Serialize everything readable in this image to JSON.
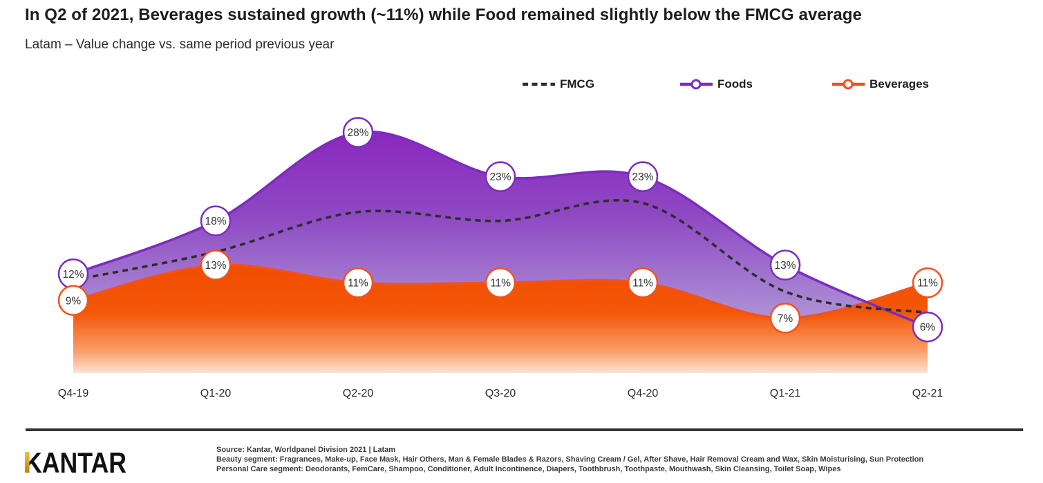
{
  "header": {
    "title": "In Q2 of 2021, Beverages sustained growth (~11%) while Food remained slightly below the FMCG average",
    "subtitle": "Latam – Value change vs. same period previous year"
  },
  "chart_data": {
    "type": "area",
    "title": "Latam – Value change vs. same period previous year",
    "unit": "%",
    "categories": [
      "Q4-19",
      "Q1-20",
      "Q2-20",
      "Q3-20",
      "Q4-20",
      "Q1-21",
      "Q2-21"
    ],
    "series": [
      {
        "name": "FMCG",
        "style": "dashed-line",
        "color": "#2e2e2e",
        "labeled": false,
        "values": [
          11.3,
          14.5,
          19,
          18,
          20,
          10,
          7.6
        ]
      },
      {
        "name": "Foods",
        "style": "area",
        "color": "#7b2cbe",
        "labeled": true,
        "values": [
          12,
          18,
          28,
          23,
          23,
          13,
          6
        ],
        "labels": [
          "12%",
          "18%",
          "28%",
          "23%",
          "23%",
          "13%",
          "6%"
        ],
        "fill_stops": [
          [
            "0%",
            "#8a28be"
          ],
          [
            "35%",
            "#8f49c3"
          ],
          [
            "70%",
            "#a886d3"
          ],
          [
            "100%",
            "#c9b4e4"
          ]
        ]
      },
      {
        "name": "Beverages",
        "style": "area",
        "color": "#f3511a",
        "labeled": true,
        "values": [
          9,
          13,
          11,
          11,
          11,
          7,
          11
        ],
        "labels": [
          "9%",
          "13%",
          "11%",
          "11%",
          "11%",
          "7%",
          "11%"
        ],
        "fill_stops": [
          [
            "0%",
            "#f14c00"
          ],
          [
            "45%",
            "#f35708"
          ],
          [
            "80%",
            "#f99f6b"
          ],
          [
            "100%",
            "#fde4d5"
          ]
        ]
      }
    ],
    "legend_position": "top",
    "grid": false,
    "y_axis_shown": false
  },
  "footer": {
    "logo_text": "KANTAR",
    "source": "Source: Kantar, Worldpanel  Division 2021 | Latam",
    "beauty": "Beauty segment: Fragrances, Make-up, Face Mask, Hair Others, Man & Female Blades & Razors, Shaving Cream / Gel, After Shave, Hair Removal Cream and Wax, Skin Moisturising, Sun Protection",
    "personal_care": "Personal Care segment: Deodorants, FemCare, Shampoo, Conditioner, Adult Incontinence, Diapers, Toothbrush, Toothpaste, Mouthwash, Skin Cleansing, Toilet Soap, Wipes"
  },
  "colors": {
    "fmcg": "#2e2e2e",
    "foods": "#7b2cbe",
    "beverages": "#f3511a",
    "divider": "#333333",
    "gold_top": "#f0c23e",
    "gold_bottom": "#b9830f"
  }
}
